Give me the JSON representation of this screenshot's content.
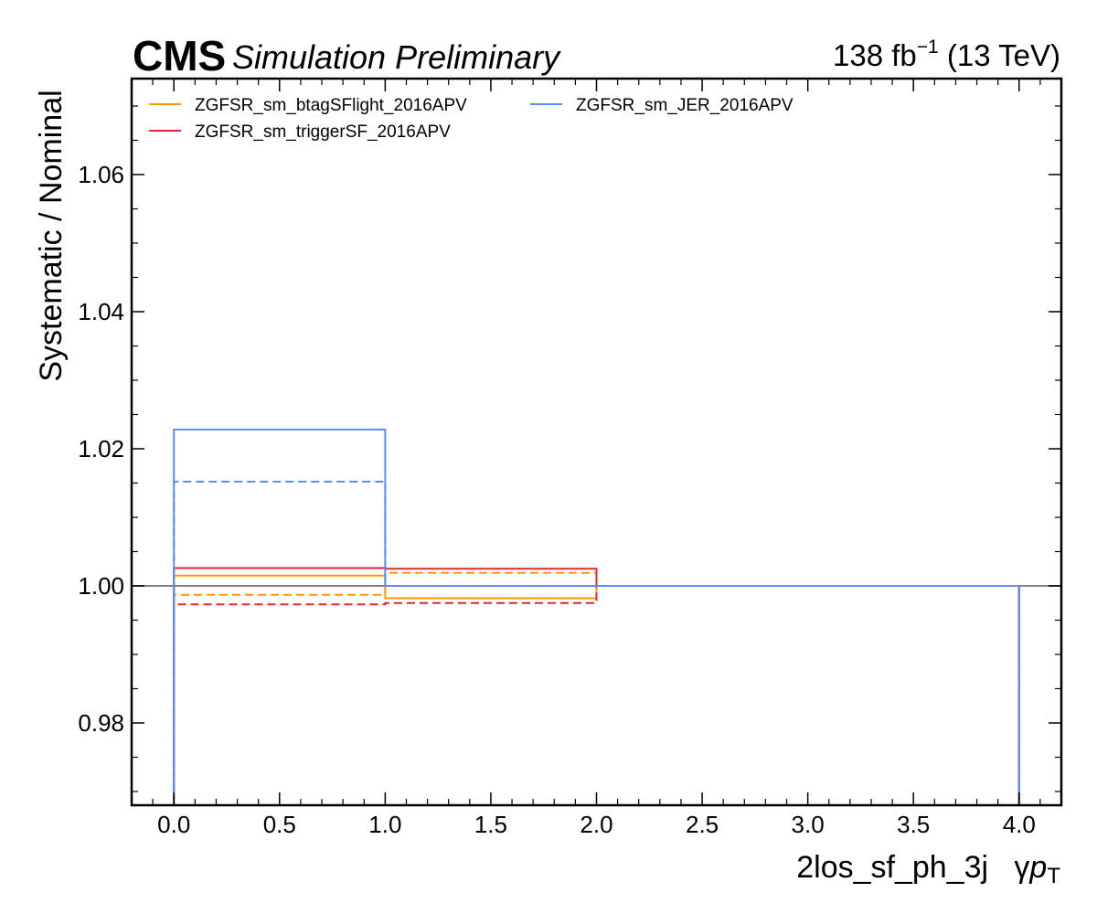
{
  "header": {
    "cms": "CMS",
    "subtitle": "Simulation Preliminary",
    "lumi_value": "138 fb",
    "lumi_exp": "−1",
    "lumi_energy": " (13 TeV)"
  },
  "chart_data": {
    "type": "step",
    "ylabel": "Systematic / Nominal",
    "xlabel_main": "2los_sf_ph_3j",
    "xlabel_var": "γ",
    "xlabel_p": "p",
    "xlabel_sub": "T",
    "xlim": [
      -0.2,
      4.2
    ],
    "ylim": [
      0.968,
      1.074
    ],
    "xticks": [
      0.0,
      0.5,
      1.0,
      1.5,
      2.0,
      2.5,
      3.0,
      3.5,
      4.0
    ],
    "xtick_labels": [
      "0.0",
      "0.5",
      "1.0",
      "1.5",
      "2.0",
      "2.5",
      "3.0",
      "3.5",
      "4.0"
    ],
    "yticks": [
      0.98,
      1.0,
      1.02,
      1.04,
      1.06
    ],
    "ytick_labels": [
      "0.98",
      "1.00",
      "1.02",
      "1.04",
      "1.06"
    ],
    "bin_edges": [
      0,
      1,
      2,
      4
    ],
    "reference_line": 1.0,
    "legend_position": "top-left",
    "series": [
      {
        "name": "ZGFSR_sm_btagSFlight_2016APV",
        "color": "#ff9900",
        "up": [
          1.0015,
          0.9982,
          1.0
        ],
        "down": [
          0.9987,
          1.0019,
          1.0
        ]
      },
      {
        "name": "ZGFSR_sm_triggerSF_2016APV",
        "color": "#e42536",
        "up": [
          1.0026,
          1.0025,
          1.0
        ],
        "down": [
          0.9973,
          0.9975,
          1.0
        ]
      },
      {
        "name": "ZGFSR_sm_JER_2016APV",
        "color": "#5790fc",
        "up": [
          1.0228,
          1.0,
          1.0
        ],
        "down": [
          1.0152,
          1.0,
          1.0
        ]
      }
    ],
    "reference_color": "#808080"
  }
}
